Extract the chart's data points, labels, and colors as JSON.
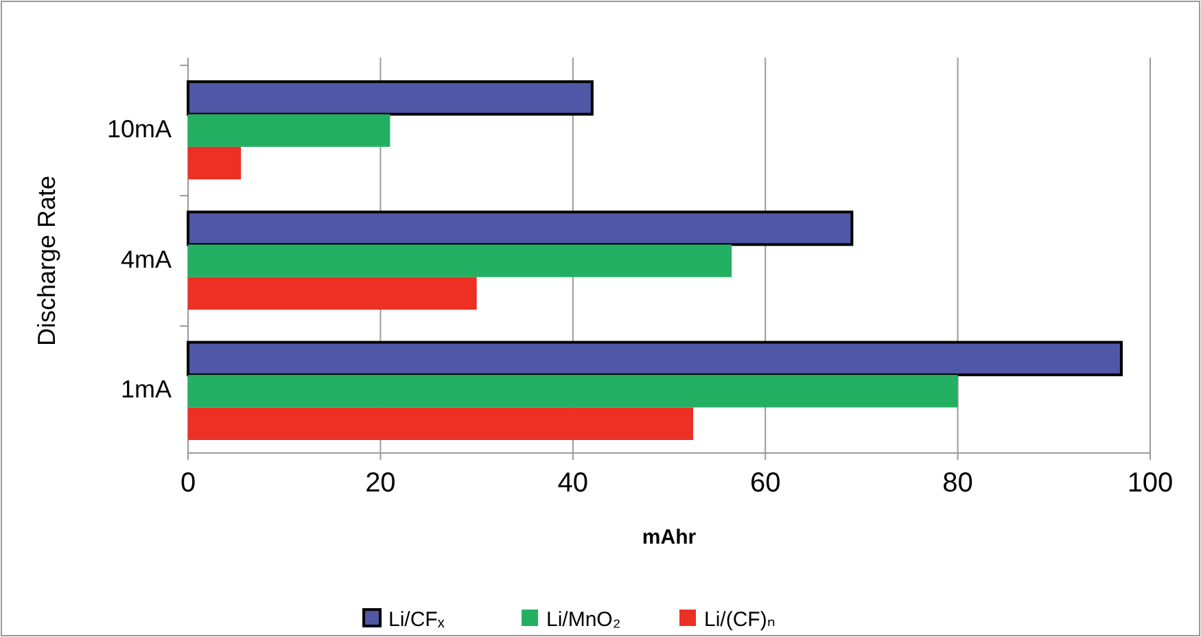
{
  "chart_data": {
    "type": "bar",
    "orientation": "horizontal",
    "xlabel": "mAhr",
    "ylabel": "Discharge Rate",
    "categories": [
      "10mA",
      "4mA",
      "1mA"
    ],
    "series": [
      {
        "name": "Li/CFₓ",
        "color": "#4f57a6",
        "values": [
          42,
          69,
          97
        ]
      },
      {
        "name": "Li/MnO₂",
        "color": "#24b063",
        "values": [
          21,
          56.5,
          80
        ]
      },
      {
        "name": "Li/(CF)ₙ",
        "color": "#ec3024",
        "values": [
          5.5,
          30,
          52.5
        ]
      }
    ],
    "xlim": [
      0,
      100
    ],
    "xticks": [
      0,
      20,
      40,
      60,
      80,
      100
    ],
    "grid": "x",
    "legend": "bottom"
  }
}
